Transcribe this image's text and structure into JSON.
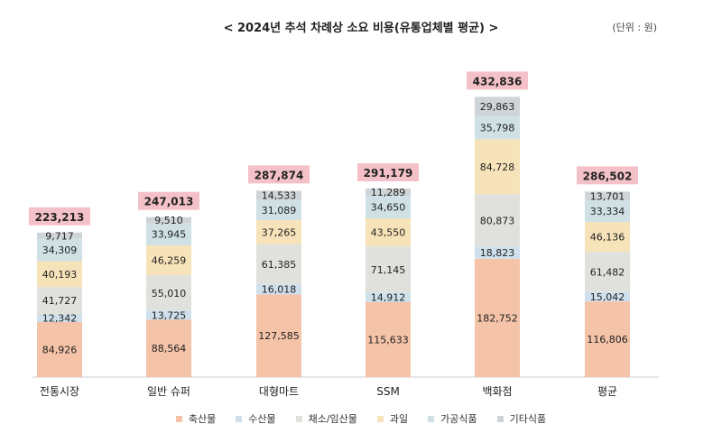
{
  "chart_data": {
    "type": "bar",
    "stacked": true,
    "title": "< 2024년 추석 차례상 소요 비용(유통업체별 평균) >",
    "unit_note": "(단위 : 원)",
    "categories": [
      "전통시장",
      "일반 슈퍼",
      "대형마트",
      "SSM",
      "백화점",
      "평균"
    ],
    "totals": [
      "223,213",
      "247,013",
      "287,874",
      "291,179",
      "432,836",
      "286,502"
    ],
    "total_values": [
      223213,
      247013,
      287874,
      291179,
      432836,
      286502
    ],
    "series": [
      {
        "name": "축산물",
        "color": "#f4c3a8",
        "values": [
          84926,
          88564,
          127585,
          115633,
          182752,
          116806
        ],
        "labels": [
          "84,926",
          "88,564",
          "127,585",
          "115,633",
          "182,752",
          "116,806"
        ]
      },
      {
        "name": "수산물",
        "color": "#cfe0ec",
        "values": [
          12342,
          13725,
          16018,
          14912,
          18823,
          15042
        ],
        "labels": [
          "12,342",
          "13,725",
          "16,018",
          "14,912",
          "18,823",
          "15,042"
        ]
      },
      {
        "name": "채소/임산물",
        "color": "#e0e1dc",
        "values": [
          41727,
          55010,
          61385,
          71145,
          80873,
          61482
        ],
        "labels": [
          "41,727",
          "55,010",
          "61,385",
          "71,145",
          "80,873",
          "61,482"
        ]
      },
      {
        "name": "과일",
        "color": "#f7e3b9",
        "values": [
          40193,
          46259,
          37265,
          43550,
          84728,
          46136
        ],
        "labels": [
          "40,193",
          "46,259",
          "37,265",
          "43,550",
          "84,728",
          "46,136"
        ]
      },
      {
        "name": "가공식품",
        "color": "#cfe1e4",
        "values": [
          34309,
          33945,
          31089,
          34650,
          35798,
          33334
        ],
        "labels": [
          "34,309",
          "33,945",
          "31,089",
          "34,650",
          "35,798",
          "33,334"
        ]
      },
      {
        "name": "기타식품",
        "color": "#cfd4d8",
        "values": [
          9717,
          9510,
          14533,
          11289,
          29863,
          13701
        ],
        "labels": [
          "9,717",
          "9,510",
          "14,533",
          "11,289",
          "29,863",
          "13,701"
        ]
      }
    ],
    "total_label_color": "#f5c1c8",
    "ylim": [
      0,
      450000
    ],
    "grid": false,
    "legend_position": "bottom"
  }
}
